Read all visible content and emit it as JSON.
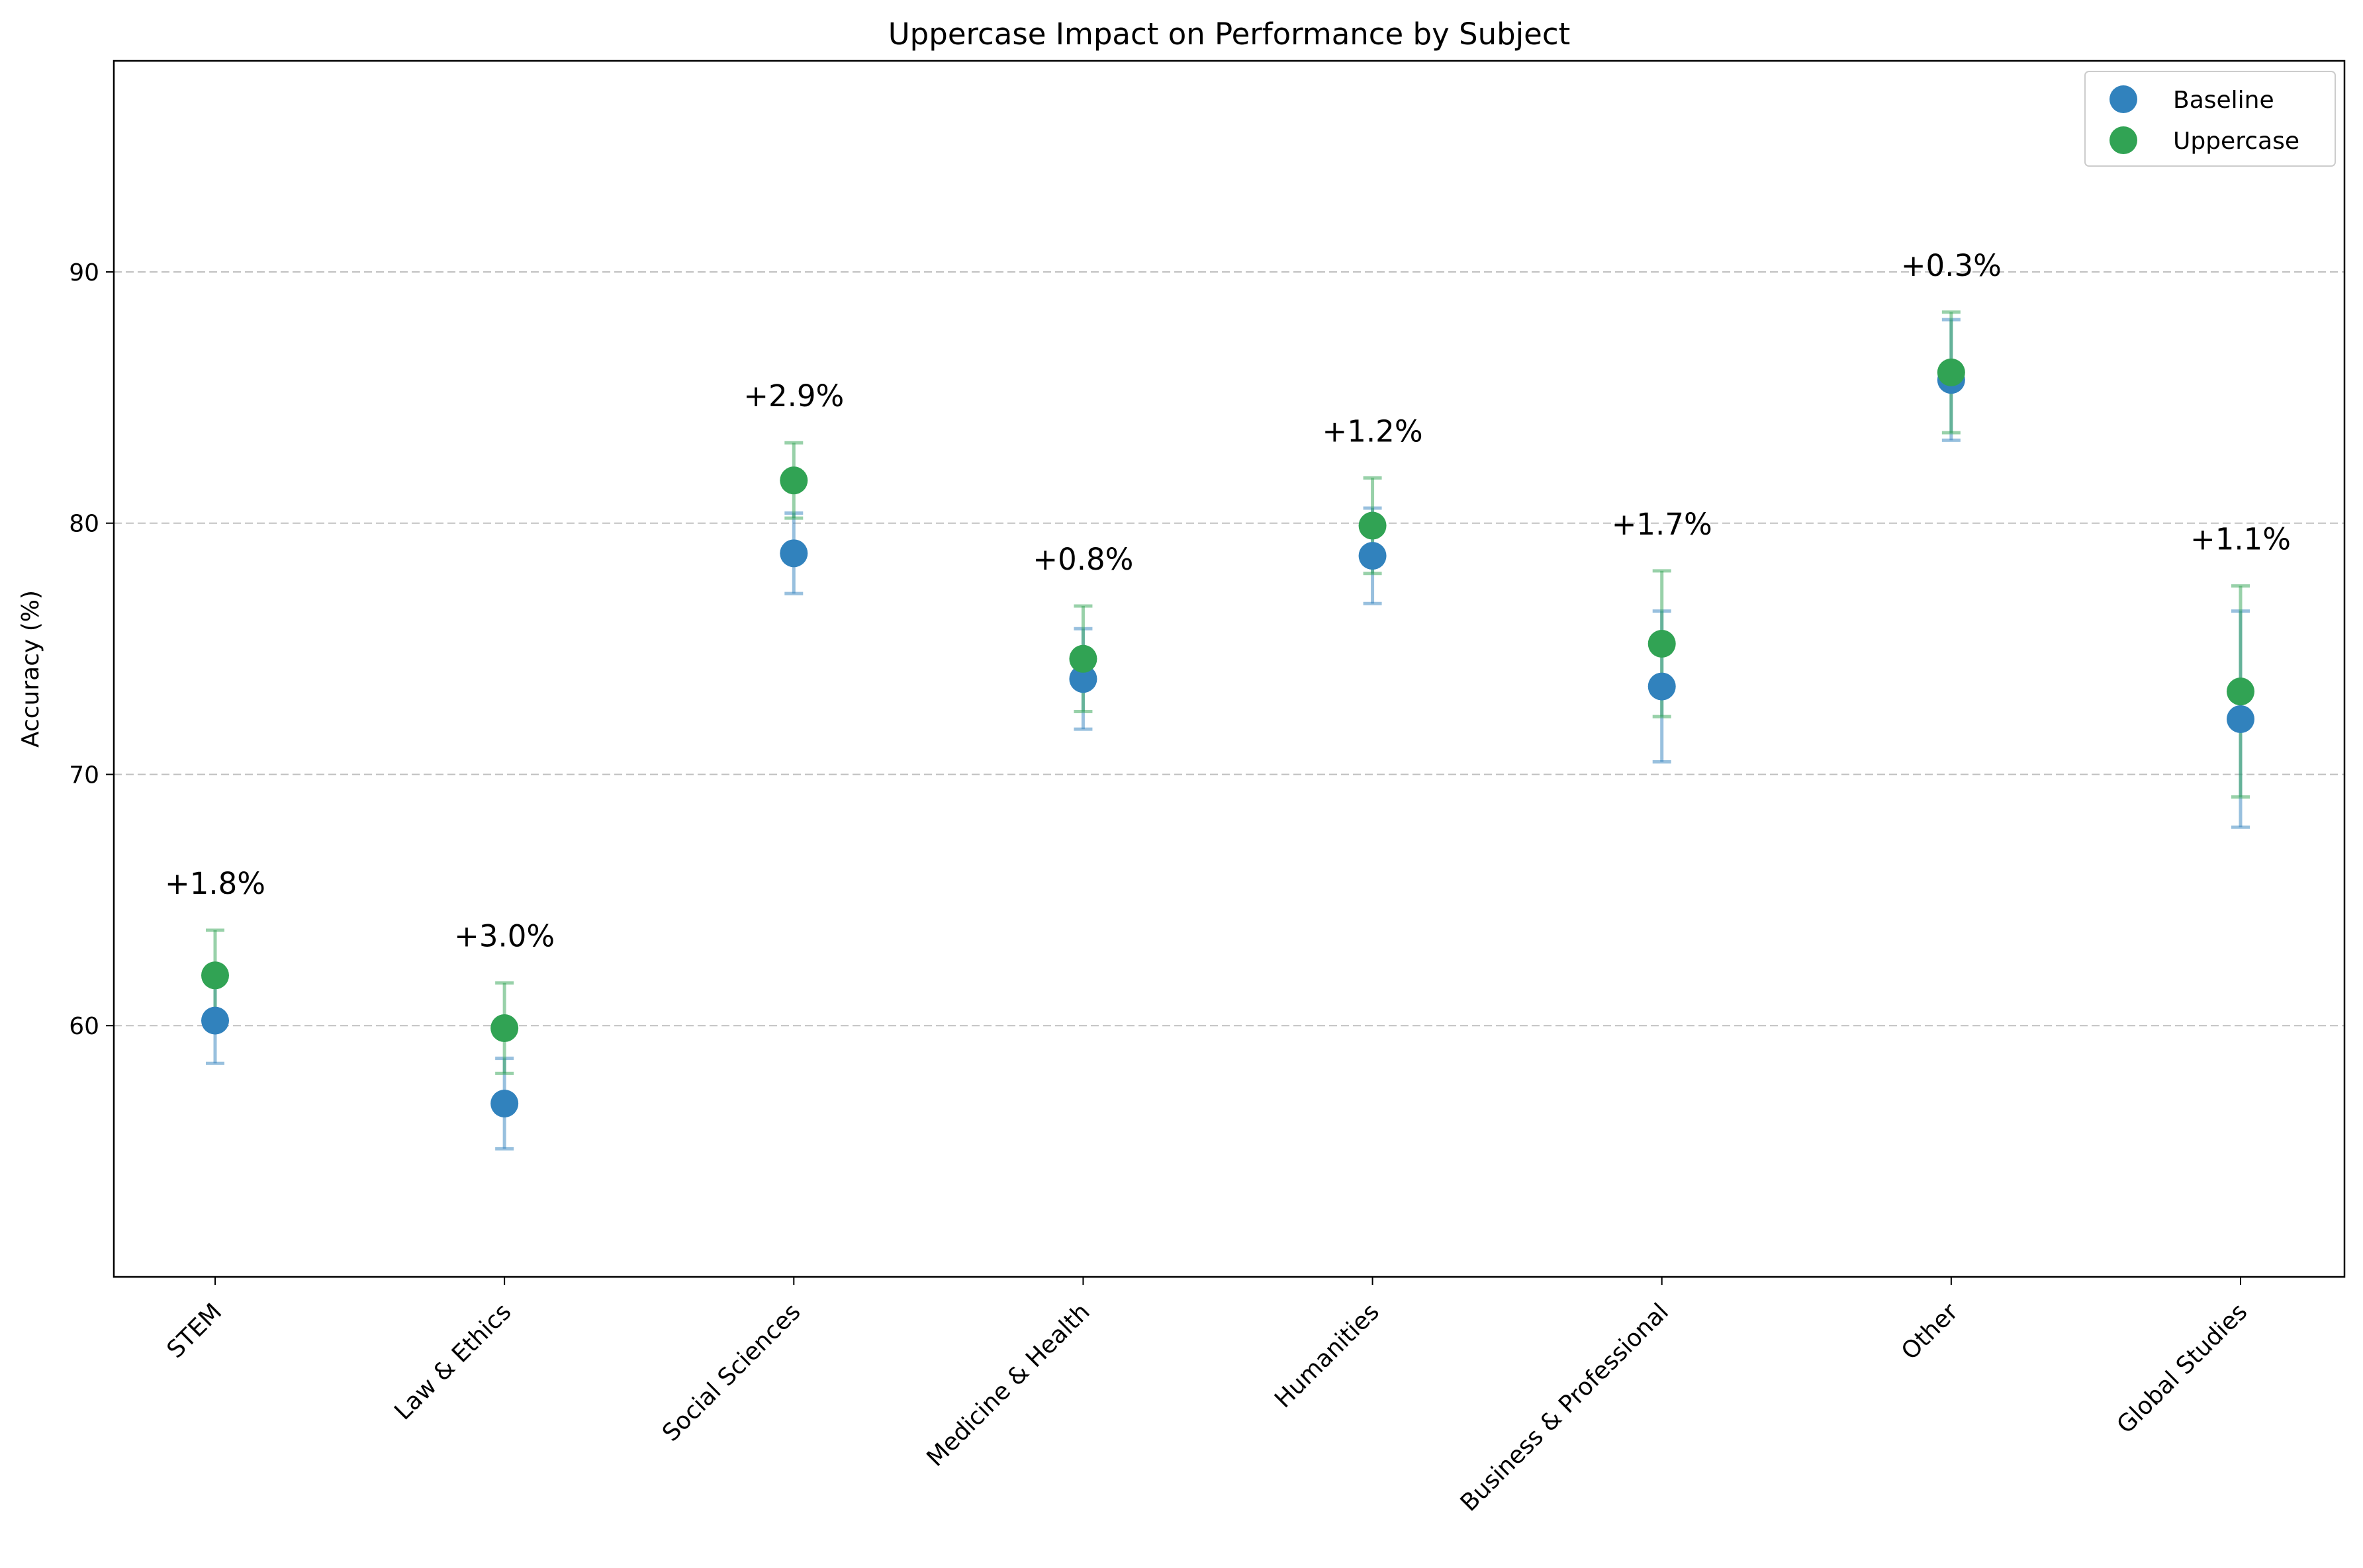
{
  "chart_data": {
    "type": "scatter",
    "title": "Uppercase Impact on Performance by Subject",
    "xlabel": "",
    "ylabel": "Accuracy (%)",
    "categories": [
      "STEM",
      "Law & Ethics",
      "Social Sciences",
      "Medicine & Health",
      "Humanities",
      "Business & Professional",
      "Other",
      "Global Studies"
    ],
    "ylim": [
      50,
      98.4
    ],
    "yticks": [
      60,
      70,
      80,
      90
    ],
    "grid": "horizontal dashed",
    "legend_position": "top-right",
    "series": [
      {
        "name": "Baseline",
        "color": "#3182bd",
        "values": [
          60.2,
          56.9,
          78.8,
          73.8,
          78.7,
          73.5,
          85.7,
          72.2
        ],
        "error": [
          1.7,
          1.8,
          1.6,
          2.0,
          1.9,
          3.0,
          2.4,
          4.3
        ]
      },
      {
        "name": "Uppercase",
        "color": "#31a354",
        "values": [
          62.0,
          59.9,
          81.7,
          74.6,
          79.9,
          75.2,
          86.0,
          73.3
        ],
        "error": [
          1.8,
          1.8,
          1.5,
          2.1,
          1.9,
          2.9,
          2.4,
          4.2
        ]
      }
    ],
    "annotations": [
      "+1.8%",
      "+3.0%",
      "+2.9%",
      "+0.8%",
      "+1.2%",
      "+1.7%",
      "+0.3%",
      "+1.1%"
    ]
  }
}
